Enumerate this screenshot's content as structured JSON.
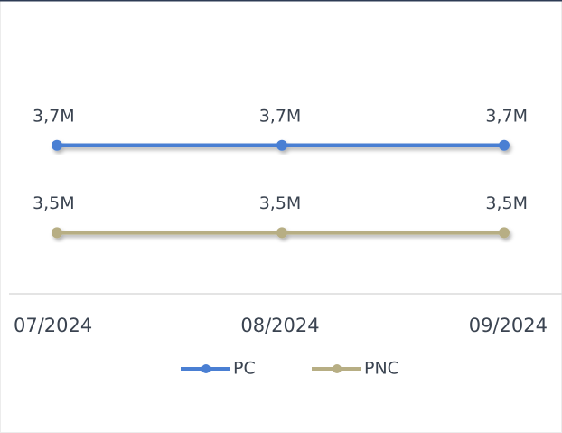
{
  "chart_data": {
    "type": "line",
    "categories": [
      "07/2024",
      "08/2024",
      "09/2024"
    ],
    "series": [
      {
        "name": "PC",
        "color": "#4a7fd3",
        "values": [
          3.7,
          3.7,
          3.7
        ],
        "value_labels": [
          "3,7M",
          "3,7M",
          "3,7M"
        ]
      },
      {
        "name": "PNC",
        "color": "#b7ae84",
        "values": [
          3.5,
          3.5,
          3.5
        ],
        "value_labels": [
          "3,5M",
          "3,5M",
          "3,5M"
        ]
      }
    ],
    "ylim": [
      3.36,
      3.95
    ],
    "legend": "bottom"
  }
}
